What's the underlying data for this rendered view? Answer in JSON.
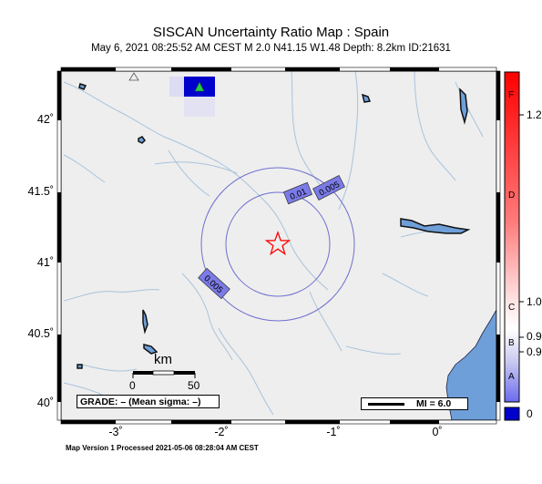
{
  "map": {
    "title": "SISCAN Uncertainty Ratio Map : Spain",
    "subtitle": "May  6, 2021 08:25:52 AM CEST   M 2.0   N41.15 W1.48   Depth: 8.2km   ID:21631",
    "footer": "Map Version 1 Processed 2021-05-06 08:28:04 AM CEST",
    "lat_labels": [
      "42˚",
      "41.5˚",
      "41˚",
      "40.5˚",
      "40˚"
    ],
    "lon_labels": [
      "-3˚",
      "-2˚",
      "-1˚",
      "0˚"
    ],
    "contours": [
      {
        "label": "0.005"
      },
      {
        "label": "0.01"
      },
      {
        "label": "0.005"
      }
    ],
    "scale": {
      "unit": "km",
      "start": "0",
      "end": "50"
    },
    "grade_text": "GRADE: – (Mean sigma: –)",
    "mi_legend": "MI = 6.0",
    "epicenter": {
      "lat": 41.15,
      "lon": -1.48
    }
  },
  "colorbar": {
    "letters": [
      "F",
      "D",
      "C",
      "B",
      "A"
    ],
    "ticks": [
      "1.2",
      "1.0",
      "0.9",
      "0.9",
      "0"
    ],
    "colors": {
      "top": "#ff0000",
      "mid": "#ffffff",
      "bottom": "#0000cc"
    }
  },
  "colors": {
    "land": "#eeeeee",
    "river": "#a9c3dc",
    "sea": "#6e9fd8",
    "contour": "#6f6fd0",
    "label_bg": "#7b7be8",
    "station_box": "#0000cc",
    "station": "#22cc44",
    "star": "#ff0000"
  }
}
